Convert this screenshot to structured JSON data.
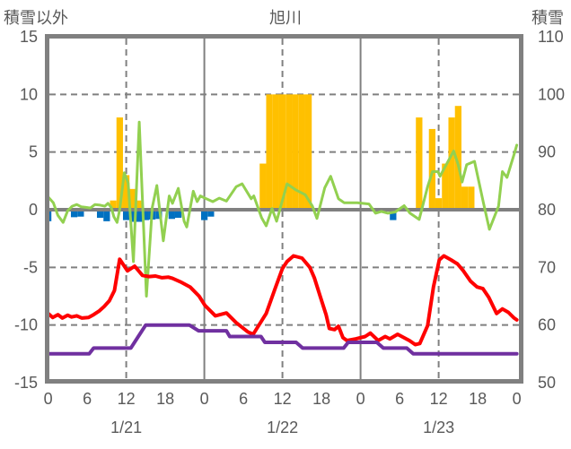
{
  "header": {
    "left_label": "積雪以外",
    "title": "旭川",
    "right_label": "積雪"
  },
  "colors": {
    "axis_gray": "#808080",
    "text_gray": "#595959",
    "snowfall_bar": "#FFC000",
    "blue_bar": "#0070C0",
    "green_line": "#92D050",
    "red_line": "#FF0000",
    "purple_line": "#7030A0",
    "background": "#FFFFFF"
  },
  "chart_data": {
    "type": "combo",
    "title": "旭川",
    "x_axis": {
      "unit": "hour",
      "range": [
        0,
        72
      ],
      "tick_interval": 6,
      "tick_labels": [
        "0",
        "6",
        "12",
        "18",
        "0",
        "6",
        "12",
        "18",
        "0",
        "6",
        "12",
        "18",
        "0"
      ],
      "date_labels": [
        {
          "label": "1/21",
          "center_hour": 12
        },
        {
          "label": "1/22",
          "center_hour": 36
        },
        {
          "label": "1/23",
          "center_hour": 60
        }
      ],
      "day_boundary_hours": [
        24,
        48
      ],
      "noon_gridline_hours": [
        12,
        36,
        60
      ]
    },
    "y_left": {
      "label": "積雪以外",
      "range": [
        -15,
        15
      ],
      "ticks": [
        15,
        10,
        5,
        0,
        -5,
        -10,
        -15
      ],
      "gridline_values": [
        10,
        5,
        -5,
        -10
      ]
    },
    "y_right": {
      "label": "積雪",
      "range": [
        50,
        110
      ],
      "ticks": [
        110,
        100,
        90,
        80,
        70,
        60,
        50
      ]
    },
    "series": [
      {
        "name": "snowfall-bars",
        "type": "bar",
        "axis": "left",
        "color": "#FFC000",
        "points": [
          [
            10,
            0.8
          ],
          [
            11,
            8
          ],
          [
            12,
            3
          ],
          [
            13,
            1.8
          ],
          [
            14,
            0.8
          ],
          [
            33,
            4
          ],
          [
            34,
            10
          ],
          [
            35,
            10
          ],
          [
            36,
            10
          ],
          [
            37,
            10
          ],
          [
            38,
            10
          ],
          [
            39,
            10
          ],
          [
            40,
            10
          ],
          [
            57,
            8
          ],
          [
            59,
            7
          ],
          [
            60,
            1
          ],
          [
            61,
            4
          ],
          [
            62,
            8
          ],
          [
            63,
            9
          ],
          [
            64,
            2
          ],
          [
            65,
            2
          ]
        ]
      },
      {
        "name": "blue-bars",
        "type": "bar",
        "axis": "left",
        "color": "#0070C0",
        "points": [
          [
            0,
            -1.0
          ],
          [
            4,
            -0.65
          ],
          [
            5,
            -0.6
          ],
          [
            8,
            -0.7
          ],
          [
            9,
            -1.0
          ],
          [
            12,
            -0.9
          ],
          [
            13,
            -1.05
          ],
          [
            14,
            -1.05
          ],
          [
            15,
            -0.9
          ],
          [
            16,
            -0.85
          ],
          [
            17,
            -0.8
          ],
          [
            19,
            -0.8
          ],
          [
            20,
            -0.7
          ],
          [
            24,
            -0.9
          ],
          [
            25,
            -0.6
          ],
          [
            53,
            -0.9
          ]
        ]
      },
      {
        "name": "green-line",
        "type": "line",
        "axis": "left",
        "color": "#92D050",
        "width": 3,
        "points": [
          [
            0,
            1.1
          ],
          [
            0.8,
            0.6
          ],
          [
            1.5,
            -0.5
          ],
          [
            2.3,
            -1.1
          ],
          [
            3,
            -0.1
          ],
          [
            3.7,
            0.3
          ],
          [
            4.4,
            0.45
          ],
          [
            5.1,
            0.25
          ],
          [
            5.8,
            0.2
          ],
          [
            6.5,
            0.15
          ],
          [
            7.2,
            0.45
          ],
          [
            8,
            0.4
          ],
          [
            8.7,
            0.3
          ],
          [
            9.2,
            0.55
          ],
          [
            9.7,
            0.2
          ],
          [
            10.1,
            -0.6
          ],
          [
            10.6,
            -1.1
          ],
          [
            11,
            0
          ],
          [
            11.7,
            3.2
          ],
          [
            12.3,
            2.3
          ],
          [
            13.1,
            -4.5
          ],
          [
            14,
            7.6
          ],
          [
            15.1,
            -7.5
          ],
          [
            16,
            0.2
          ],
          [
            16.7,
            2.1
          ],
          [
            17.7,
            -2.7
          ],
          [
            18.6,
            1.2
          ],
          [
            19.1,
            0.55
          ],
          [
            20,
            1.85
          ],
          [
            20.9,
            -1
          ],
          [
            21.3,
            -1.5
          ],
          [
            22.3,
            1.6
          ],
          [
            22.9,
            0.7
          ],
          [
            23.4,
            1.2
          ],
          [
            24.3,
            0.95
          ],
          [
            25.3,
            0.7
          ],
          [
            26.3,
            1
          ],
          [
            27.4,
            0.75
          ],
          [
            28.9,
            2
          ],
          [
            29.8,
            2.25
          ],
          [
            31.2,
            0.95
          ],
          [
            31.6,
            1.2
          ],
          [
            32.8,
            -0.7
          ],
          [
            33.5,
            -1.4
          ],
          [
            34.4,
            0.1
          ],
          [
            35.1,
            -1
          ],
          [
            36.7,
            2.25
          ],
          [
            38.1,
            1.7
          ],
          [
            39.5,
            1.3
          ],
          [
            40.6,
            0.3
          ],
          [
            41.3,
            -0.75
          ],
          [
            42.5,
            1.9
          ],
          [
            43.4,
            2.9
          ],
          [
            44.6,
            0.95
          ],
          [
            45.5,
            0.6
          ],
          [
            47.5,
            0.6
          ],
          [
            49.3,
            0.5
          ],
          [
            50.3,
            -0.3
          ],
          [
            51.2,
            -0.15
          ],
          [
            52.2,
            -0.3
          ],
          [
            53.3,
            -0.2
          ],
          [
            54.7,
            0.35
          ],
          [
            55.6,
            -0.3
          ],
          [
            57,
            -0.85
          ],
          [
            58.3,
            2
          ],
          [
            59.05,
            3.3
          ],
          [
            59.9,
            3.3
          ],
          [
            60.2,
            2.9
          ],
          [
            62.3,
            5.1
          ],
          [
            63,
            3.9
          ],
          [
            63.6,
            2.4
          ],
          [
            64.3,
            3.9
          ],
          [
            65.5,
            4.2
          ],
          [
            66.9,
            0.55
          ],
          [
            67.8,
            -1.7
          ],
          [
            69.2,
            0.3
          ],
          [
            69.8,
            3.3
          ],
          [
            70.5,
            2.8
          ],
          [
            71.7,
            5
          ],
          [
            72,
            5.6
          ]
        ]
      },
      {
        "name": "red-line",
        "type": "line",
        "axis": "left",
        "color": "#FF0000",
        "width": 4,
        "points": [
          [
            0,
            -9
          ],
          [
            0.7,
            -9.35
          ],
          [
            1.5,
            -9.1
          ],
          [
            2.2,
            -9.4
          ],
          [
            3,
            -9.15
          ],
          [
            3.6,
            -9.3
          ],
          [
            4.4,
            -9.2
          ],
          [
            5.2,
            -9.4
          ],
          [
            6.2,
            -9.35
          ],
          [
            7,
            -9.1
          ],
          [
            7.8,
            -8.8
          ],
          [
            8.6,
            -8.4
          ],
          [
            9.4,
            -7.9
          ],
          [
            10.2,
            -7
          ],
          [
            11,
            -4.3
          ],
          [
            12.2,
            -5.3
          ],
          [
            13.3,
            -4.9
          ],
          [
            14.5,
            -5.7
          ],
          [
            15.5,
            -5.8
          ],
          [
            16.5,
            -5.75
          ],
          [
            17.5,
            -5.9
          ],
          [
            18.5,
            -5.85
          ],
          [
            19.1,
            -5.95
          ],
          [
            20.5,
            -6.3
          ],
          [
            21.8,
            -6.7
          ],
          [
            23.2,
            -7.5
          ],
          [
            24.1,
            -8.3
          ],
          [
            25.7,
            -9.2
          ],
          [
            27.4,
            -8.95
          ],
          [
            28.9,
            -9.8
          ],
          [
            30.7,
            -10.6
          ],
          [
            31.5,
            -10.8
          ],
          [
            33.5,
            -9
          ],
          [
            34.9,
            -6.8
          ],
          [
            36,
            -5.1
          ],
          [
            36.7,
            -4.5
          ],
          [
            37.7,
            -4
          ],
          [
            39,
            -4.2
          ],
          [
            40.2,
            -5
          ],
          [
            40.9,
            -5.9
          ],
          [
            41.8,
            -7.5
          ],
          [
            42.7,
            -9.1
          ],
          [
            43.2,
            -10.3
          ],
          [
            44,
            -10.4
          ],
          [
            44.6,
            -10.1
          ],
          [
            45.3,
            -11.1
          ],
          [
            45.9,
            -11.35
          ],
          [
            47.3,
            -11.2
          ],
          [
            48.7,
            -11
          ],
          [
            49.5,
            -10.7
          ],
          [
            50.7,
            -11.35
          ],
          [
            51.8,
            -11
          ],
          [
            52.5,
            -11.2
          ],
          [
            53.7,
            -10.8
          ],
          [
            55.5,
            -11.35
          ],
          [
            56.4,
            -11.7
          ],
          [
            57.1,
            -11.6
          ],
          [
            58.3,
            -10.05
          ],
          [
            59.2,
            -6.7
          ],
          [
            60.1,
            -4.35
          ],
          [
            60.8,
            -4
          ],
          [
            61.9,
            -4.35
          ],
          [
            62.9,
            -4.7
          ],
          [
            63.8,
            -5.3
          ],
          [
            64.9,
            -6.2
          ],
          [
            65.9,
            -6.7
          ],
          [
            66.8,
            -6.85
          ],
          [
            67.7,
            -7.6
          ],
          [
            68.9,
            -9
          ],
          [
            69.8,
            -8.6
          ],
          [
            70.7,
            -8.9
          ],
          [
            71.6,
            -9.4
          ],
          [
            72,
            -9.55
          ]
        ]
      },
      {
        "name": "purple-line",
        "type": "line",
        "axis": "right",
        "color": "#7030A0",
        "width": 4,
        "points": [
          [
            0,
            55
          ],
          [
            6.3,
            55
          ],
          [
            7,
            56
          ],
          [
            12.7,
            56
          ],
          [
            15,
            60
          ],
          [
            21.7,
            60
          ],
          [
            23.1,
            59
          ],
          [
            27.4,
            59
          ],
          [
            27.9,
            58
          ],
          [
            32.7,
            58
          ],
          [
            33.3,
            57
          ],
          [
            38.1,
            57
          ],
          [
            39.1,
            56
          ],
          [
            45.4,
            56
          ],
          [
            46.1,
            57
          ],
          [
            50.5,
            57
          ],
          [
            51.5,
            56
          ],
          [
            55.1,
            56
          ],
          [
            56.1,
            55
          ],
          [
            72,
            55
          ]
        ]
      }
    ]
  }
}
